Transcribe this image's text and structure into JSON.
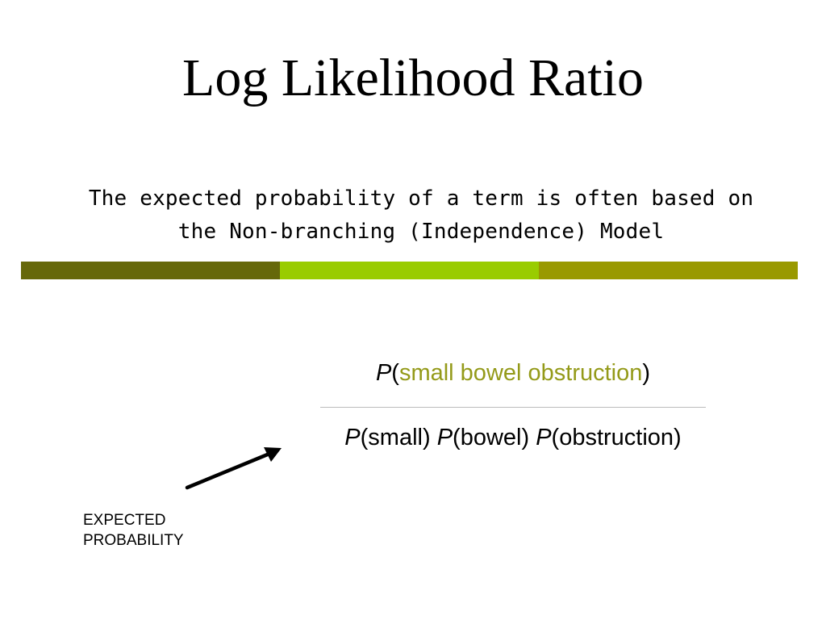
{
  "slide": {
    "title": "Log Likelihood Ratio",
    "subtitle_line1": "The expected probability of a term is often based on",
    "subtitle_line2": "the Non-branching (Independence) Model"
  },
  "divider": {
    "colors": [
      "#66680a",
      "#99cc00",
      "#999900"
    ]
  },
  "formula": {
    "numerator": {
      "p": "P",
      "open": "(",
      "term": "small bowel obstruction",
      "close": ")"
    },
    "denominator": {
      "p1": "P",
      "arg1": "(small)",
      "p2": "P",
      "arg2": "(bowel)",
      "p3": "P",
      "arg3": "(obstruction)"
    },
    "term_color": "#949a19"
  },
  "annotation": {
    "line1": "EXPECTED",
    "line2": "PROBABILITY"
  }
}
